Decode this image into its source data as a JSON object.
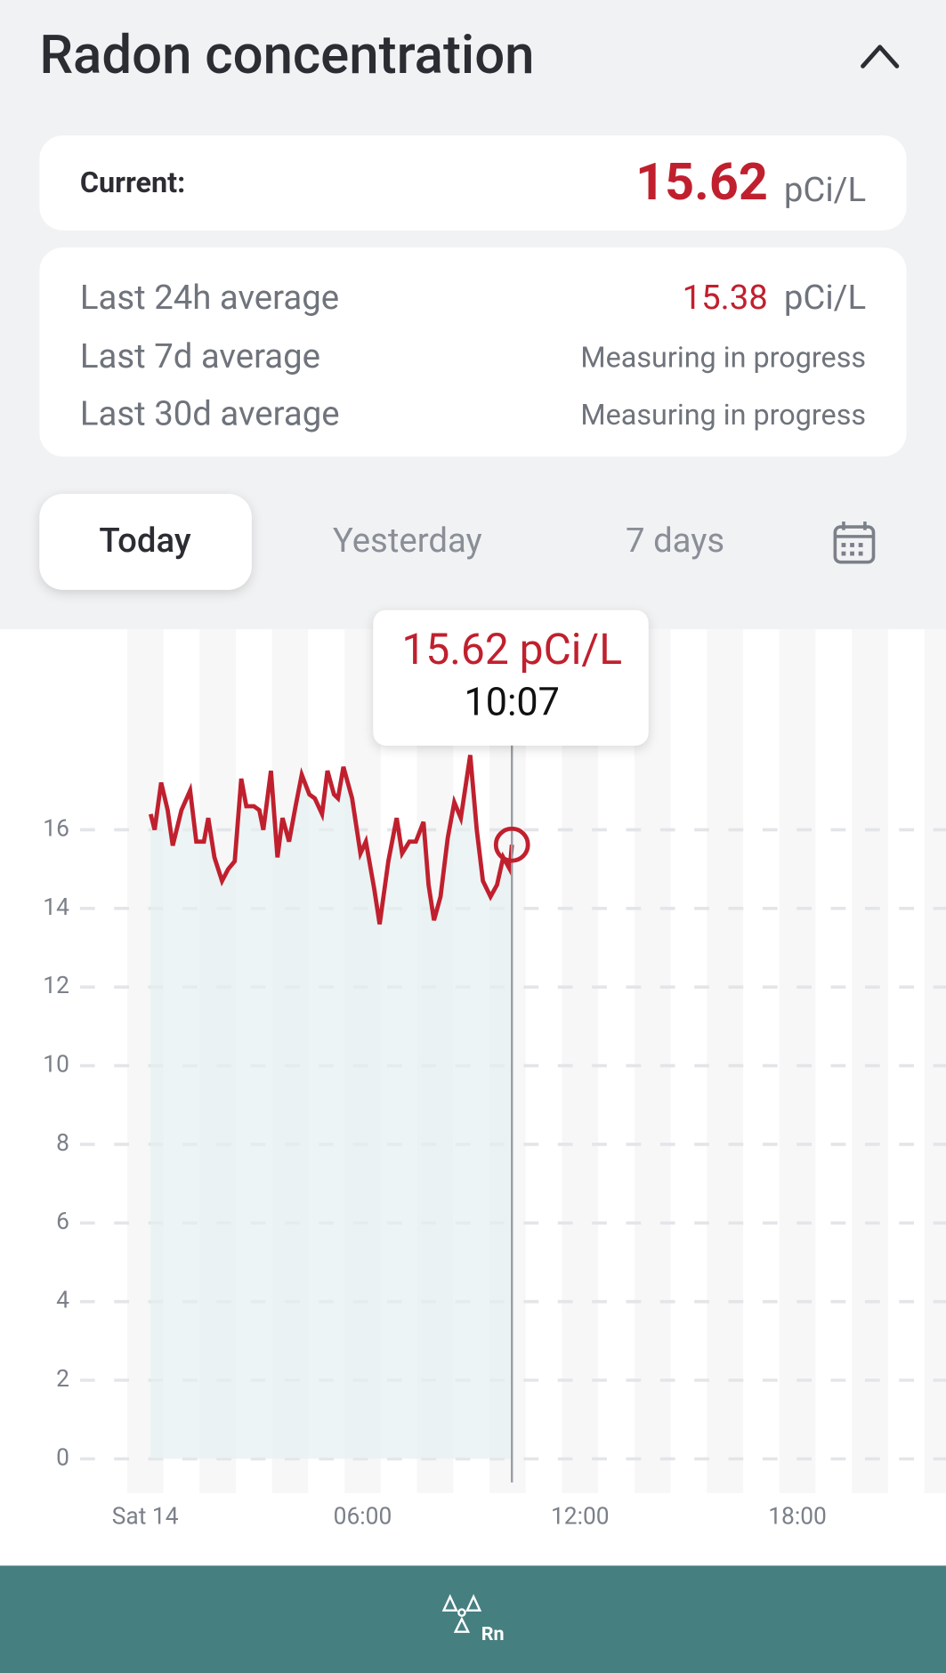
{
  "header": {
    "title": "Radon concentration"
  },
  "current": {
    "label": "Current:",
    "value": "15.62",
    "unit": "pCi/L"
  },
  "averages": [
    {
      "label": "Last 24h average",
      "value": "15.38",
      "unit": "pCi/L"
    },
    {
      "label": "Last 7d average",
      "status": "Measuring in progress"
    },
    {
      "label": "Last 30d average",
      "status": "Measuring in progress"
    }
  ],
  "tabs": [
    "Today",
    "Yesterday",
    "7 days"
  ],
  "footer": {
    "label": "Rn"
  },
  "chart_data": {
    "type": "line",
    "color": "#c0202e",
    "fill": "#e6f0f1",
    "tooltip": {
      "value": "15.62 pCi/L",
      "time": "10:07"
    },
    "x": [
      0.15,
      0.26,
      0.44,
      0.62,
      0.76,
      1.0,
      1.24,
      1.41,
      1.62,
      1.74,
      1.91,
      2.12,
      2.29,
      2.47,
      2.65,
      2.79,
      3.0,
      3.15,
      3.26,
      3.47,
      3.65,
      3.79,
      3.97,
      4.15,
      4.32,
      4.53,
      4.68,
      4.88,
      5.03,
      5.21,
      5.32,
      5.47,
      5.71,
      5.94,
      6.09,
      6.32,
      6.47,
      6.71,
      6.94,
      7.09,
      7.29,
      7.47,
      7.68,
      7.82,
      7.97,
      8.15,
      8.35,
      8.53,
      8.71,
      8.97,
      9.15,
      9.32,
      9.53,
      9.71,
      9.88,
      10.06,
      10.12
    ],
    "values": [
      16.4,
      16.0,
      17.2,
      16.5,
      15.6,
      16.5,
      17.0,
      15.7,
      15.7,
      16.3,
      15.3,
      14.7,
      15.0,
      15.2,
      17.3,
      16.6,
      16.6,
      16.5,
      16.0,
      17.5,
      15.3,
      16.3,
      15.7,
      16.6,
      17.4,
      16.9,
      16.8,
      16.4,
      17.5,
      16.9,
      16.8,
      17.6,
      16.8,
      15.4,
      15.7,
      14.5,
      13.6,
      15.2,
      16.3,
      15.4,
      15.7,
      15.7,
      16.2,
      14.6,
      13.7,
      14.3,
      15.8,
      16.7,
      16.3,
      17.9,
      16.0,
      14.7,
      14.3,
      14.6,
      15.3,
      15.0,
      15.62
    ],
    "xlim": [
      -1.8,
      22.1
    ],
    "xticks": [
      {
        "value": 0,
        "label": "Sat 14"
      },
      {
        "value": 6,
        "label": "06:00"
      },
      {
        "value": 12,
        "label": "12:00"
      },
      {
        "value": 18,
        "label": "18:00"
      }
    ],
    "ylim": [
      -0.6,
      21.1
    ],
    "yticks": [
      0,
      2,
      4,
      6,
      8,
      10,
      12,
      14,
      16
    ],
    "grid": true
  }
}
